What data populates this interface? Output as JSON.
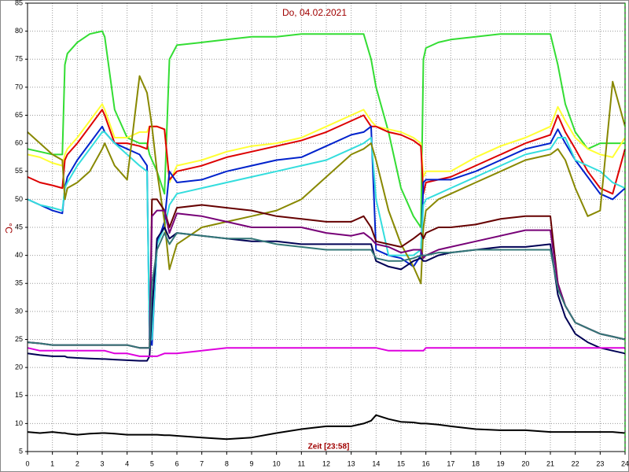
{
  "chart_data": {
    "type": "line",
    "title": "Do, 04.02.2021",
    "x_label": "Zeit [23:58]",
    "y_label": "°C",
    "xlim": [
      0,
      24
    ],
    "ylim": [
      5,
      85
    ],
    "grid": true,
    "xticks": [
      0,
      1,
      2,
      3,
      4,
      5,
      6,
      7,
      8,
      9,
      10,
      11,
      12,
      13,
      14,
      15,
      16,
      17,
      18,
      19,
      20,
      21,
      22,
      23,
      24
    ],
    "yticks": [
      5,
      10,
      15,
      20,
      25,
      30,
      35,
      40,
      45,
      50,
      55,
      60,
      65,
      70,
      75,
      80,
      85
    ],
    "x": [
      0,
      0.5,
      1,
      1.4,
      1.5,
      1.6,
      2,
      2.5,
      3,
      3.1,
      3.5,
      4,
      4.5,
      4.8,
      4.9,
      5,
      5.2,
      5.5,
      5.7,
      6,
      7,
      8,
      9,
      10,
      11,
      12,
      13,
      13.5,
      13.8,
      14,
      14.5,
      15,
      15.5,
      15.8,
      15.9,
      16,
      16.5,
      17,
      18,
      19,
      20,
      21,
      21.3,
      21.6,
      22,
      22.5,
      23,
      23.5,
      24
    ],
    "series": [
      {
        "color": "#33dd33",
        "values": [
          59,
          58.5,
          58,
          58,
          74,
          76,
          78,
          79.5,
          80,
          79,
          66,
          61,
          60,
          60,
          58,
          57,
          55,
          51,
          75,
          77.5,
          78,
          78.5,
          79,
          79,
          79.5,
          79.5,
          79.5,
          79.5,
          75,
          70,
          62,
          52,
          47,
          45,
          75,
          77,
          78,
          78.5,
          79,
          79.5,
          79.5,
          79.5,
          74,
          67,
          62,
          59,
          60,
          60,
          60
        ]
      },
      {
        "color": "#ffff33",
        "values": [
          58,
          57.5,
          56.5,
          56,
          58,
          59,
          61,
          64,
          67,
          66,
          61,
          61,
          62,
          62,
          63,
          63,
          63,
          62.5,
          53,
          56,
          57,
          58.5,
          59.5,
          60,
          61,
          63,
          65,
          66,
          64,
          63,
          62.5,
          62,
          61,
          60,
          54,
          55,
          55,
          55,
          57.5,
          59.5,
          61,
          63,
          66.5,
          64,
          61,
          59,
          58,
          57.5,
          61
        ]
      },
      {
        "color": "#dd0000",
        "values": [
          54,
          53,
          52.5,
          52,
          57,
          58,
          60,
          63,
          66,
          65,
          60,
          60,
          59.5,
          59,
          63,
          63,
          63,
          62.5,
          53.5,
          55,
          56,
          57.5,
          58.5,
          59.5,
          60.5,
          62,
          64,
          65,
          63,
          63,
          62,
          61.5,
          60.5,
          59.5,
          51,
          53,
          53.5,
          54,
          56,
          58,
          60,
          61.5,
          65,
          62,
          59,
          55,
          52,
          51,
          59
        ]
      },
      {
        "color": "#0022cc",
        "values": [
          50,
          49,
          48,
          47.5,
          52,
          54,
          57,
          60,
          63,
          62,
          60,
          59,
          58,
          56,
          25,
          24,
          42,
          46,
          55,
          53,
          53.5,
          55,
          56,
          57,
          57.5,
          59.5,
          61.5,
          62,
          63,
          41,
          40,
          39.5,
          38,
          40,
          53,
          53.5,
          53.5,
          53.5,
          55,
          57,
          59,
          60,
          62.5,
          60,
          57,
          54,
          51,
          50,
          52
        ]
      },
      {
        "color": "#33dddd",
        "values": [
          50,
          49,
          48.5,
          48,
          52,
          53,
          56,
          59,
          62,
          62,
          60,
          58,
          56,
          55,
          25,
          25,
          42,
          45,
          49,
          51,
          52,
          53,
          54,
          55,
          56,
          57,
          59,
          60,
          61,
          50,
          40,
          40,
          40,
          41,
          49,
          50,
          51,
          52,
          54,
          56,
          58,
          59,
          61,
          61,
          57,
          56,
          55,
          53,
          52
        ]
      },
      {
        "color": "#888800",
        "values": [
          62,
          60,
          58,
          57,
          50,
          52,
          53,
          55,
          59,
          60,
          56,
          53.5,
          72,
          69,
          66,
          63,
          55,
          46,
          37.5,
          42,
          45,
          46,
          47,
          48,
          50,
          54,
          58,
          59,
          60,
          57,
          48,
          42,
          38,
          35,
          45,
          48,
          50,
          51,
          53,
          55,
          57,
          58,
          59,
          57,
          52,
          47,
          48,
          71,
          63
        ]
      },
      {
        "color": "#660000",
        "values": [
          24.5,
          24.3,
          24,
          24,
          24,
          24,
          24,
          24,
          24,
          24,
          24,
          24,
          23.5,
          23.5,
          23.5,
          50,
          50,
          48,
          45,
          48.5,
          49,
          48.5,
          48,
          47,
          46.5,
          46,
          46,
          47,
          45,
          42.5,
          42,
          41.5,
          43,
          44,
          43,
          44,
          45,
          45,
          45.5,
          46.5,
          47,
          47,
          35,
          31,
          28,
          27,
          26,
          25.5,
          25
        ]
      },
      {
        "color": "#770077",
        "values": [
          24.5,
          24.3,
          24,
          24,
          24,
          24,
          24,
          24,
          24,
          24,
          24,
          24,
          23.5,
          23.5,
          23.5,
          47,
          48,
          48,
          44,
          47.5,
          47,
          46,
          45,
          45,
          45,
          44,
          43.5,
          44,
          43,
          42,
          41.5,
          40.5,
          41,
          41,
          39.5,
          40,
          41,
          41.5,
          42.5,
          43.5,
          44.5,
          44.5,
          35,
          31,
          28,
          27,
          26,
          25.5,
          25
        ]
      },
      {
        "color": "#000055",
        "values": [
          22.5,
          22.2,
          22,
          22,
          22,
          21.8,
          21.7,
          21.6,
          21.5,
          21.5,
          21.4,
          21.3,
          21.2,
          21.2,
          22,
          30,
          43,
          45,
          43,
          44,
          43.5,
          43,
          42.5,
          42.5,
          42,
          42,
          42,
          42,
          42,
          39,
          38,
          37.5,
          39,
          39.5,
          39,
          39,
          40,
          40.5,
          41,
          41.5,
          41.5,
          42,
          33,
          29,
          26,
          24.5,
          23.5,
          23,
          22.5
        ]
      },
      {
        "color": "#337777",
        "values": [
          24.5,
          24.3,
          24,
          24,
          24,
          24,
          24,
          24,
          24,
          24,
          24,
          24,
          23.5,
          23.5,
          23.5,
          35,
          41,
          44,
          42,
          44,
          43.5,
          43,
          43,
          42,
          41.5,
          41,
          41,
          41,
          41,
          39.5,
          39,
          39,
          39.5,
          40,
          40,
          40,
          40.5,
          40.5,
          41,
          41,
          41,
          41,
          34,
          31,
          28,
          27,
          26,
          25.5,
          25
        ]
      },
      {
        "color": "#dd00dd",
        "values": [
          23.5,
          23,
          23,
          23,
          23,
          23,
          23,
          23,
          23,
          23,
          22.5,
          22.5,
          22,
          22,
          22,
          22,
          22,
          22.5,
          22.5,
          22.5,
          23,
          23.5,
          23.5,
          23.5,
          23.5,
          23.5,
          23.5,
          23.5,
          23.5,
          23.5,
          23,
          23,
          23,
          23,
          23,
          23.5,
          23.5,
          23.5,
          23.5,
          23.5,
          23.5,
          23.5,
          23.5,
          23.5,
          23.5,
          23.5,
          23.5,
          23.5,
          23.5
        ]
      },
      {
        "color": "#000000",
        "values": [
          8.5,
          8.3,
          8.5,
          8.3,
          8.3,
          8.2,
          8,
          8.2,
          8.3,
          8.3,
          8.2,
          8,
          8,
          8,
          8,
          8,
          8,
          7.9,
          7.9,
          7.8,
          7.5,
          7.2,
          7.5,
          8.3,
          9,
          9.5,
          9.5,
          10,
          10.5,
          11.5,
          10.8,
          10.3,
          10.2,
          10,
          10,
          10,
          9.8,
          9.5,
          9,
          8.8,
          8.8,
          8.5,
          8.5,
          8.5,
          8.5,
          8.5,
          8.5,
          8.5,
          8.3
        ]
      }
    ]
  }
}
